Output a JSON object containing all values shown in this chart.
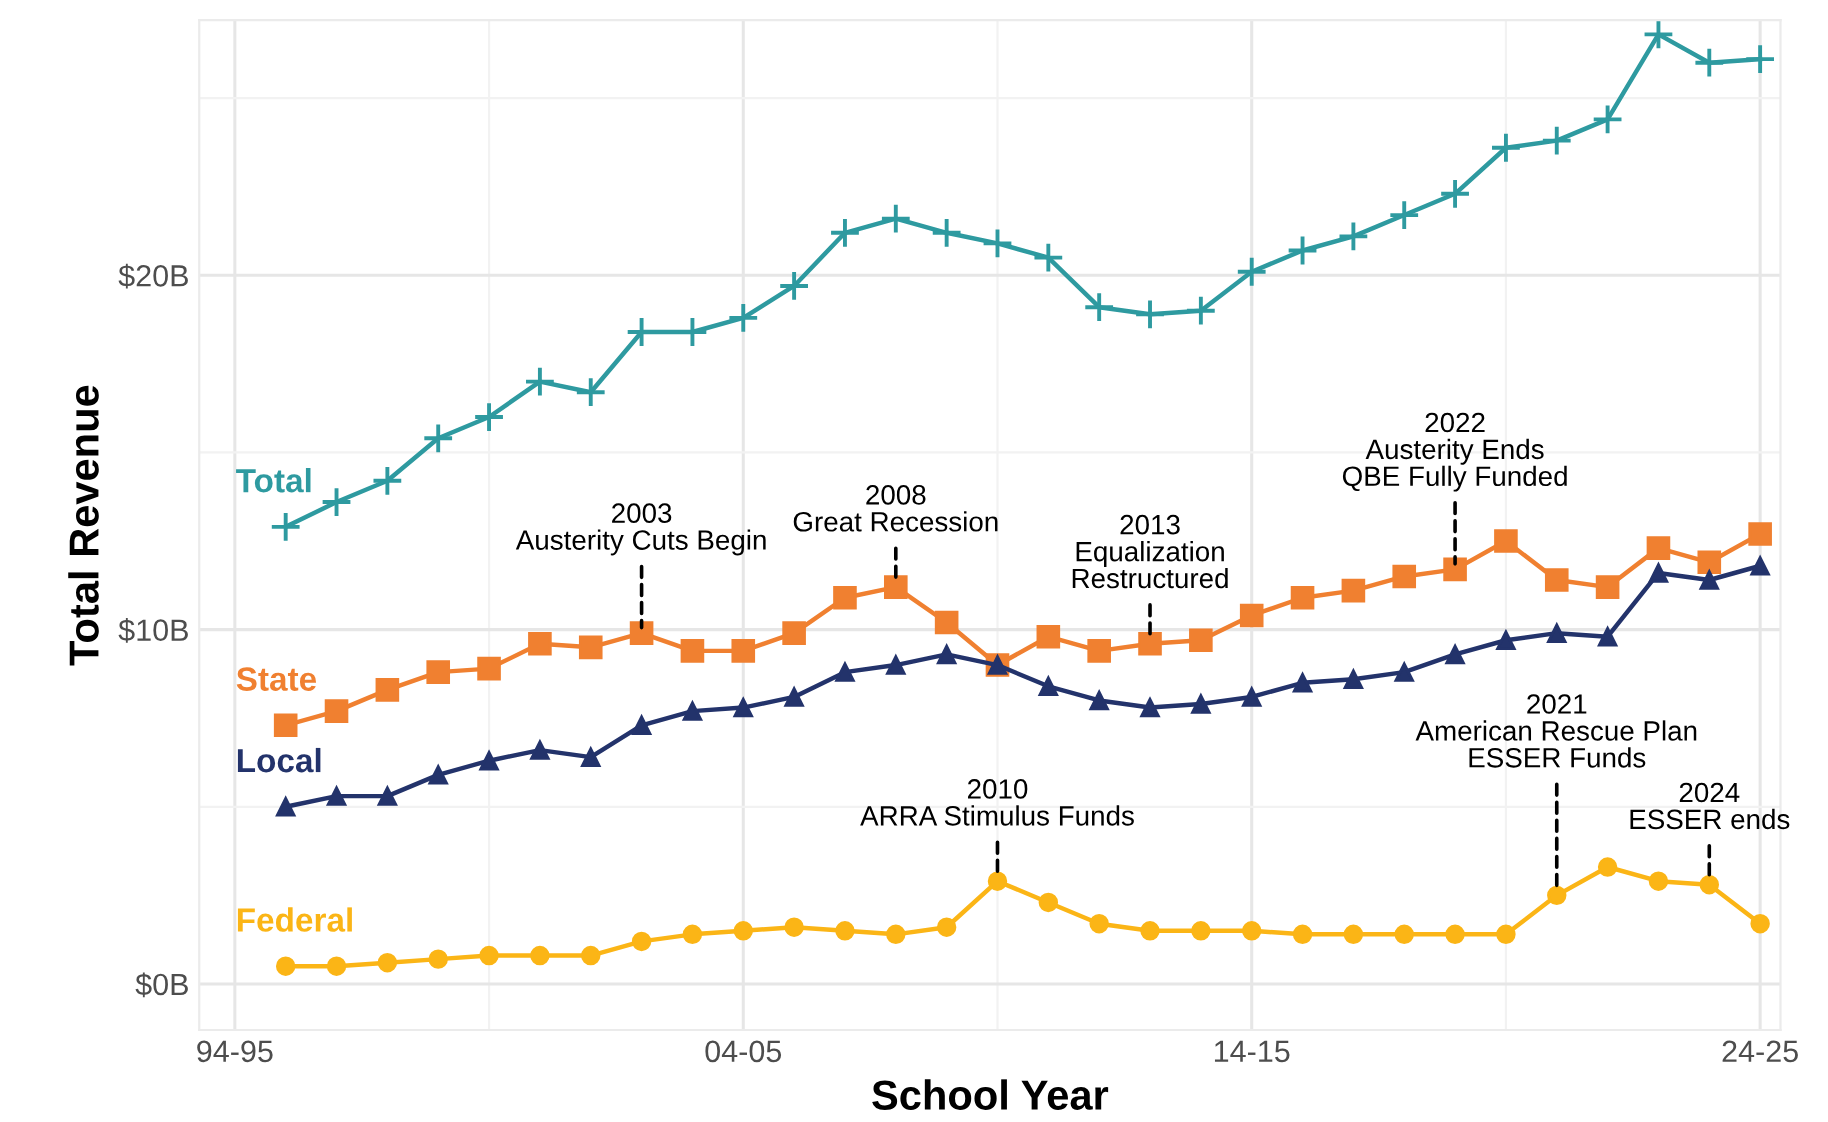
{
  "chart_data": {
    "type": "line",
    "xlabel": "School Year",
    "ylabel": "Total Revenue",
    "categories": [
      "94-95",
      null,
      null,
      null,
      null,
      null,
      null,
      null,
      null,
      null,
      "04-05",
      null,
      null,
      null,
      null,
      null,
      null,
      null,
      null,
      null,
      "14-15",
      null,
      null,
      null,
      null,
      null,
      null,
      null,
      null,
      null,
      "24-25"
    ],
    "series": [
      {
        "name": "Total",
        "color": "#2e9aa0",
        "marker": "cross",
        "values": [
          null,
          12.9,
          13.6,
          14.2,
          15.4,
          16.0,
          17.0,
          16.7,
          18.4,
          18.4,
          18.8,
          19.7,
          21.2,
          21.6,
          21.2,
          20.9,
          20.5,
          19.1,
          18.9,
          19.0,
          20.1,
          20.7,
          21.1,
          21.7,
          22.3,
          23.6,
          23.8,
          24.4,
          26.8,
          26.0,
          26.1
        ]
      },
      {
        "name": "State",
        "color": "#f08030",
        "marker": "square",
        "values": [
          null,
          7.3,
          7.7,
          8.3,
          8.8,
          8.9,
          9.6,
          9.5,
          9.9,
          9.4,
          9.4,
          9.9,
          10.9,
          11.2,
          10.2,
          9.0,
          9.8,
          9.4,
          9.6,
          9.7,
          10.4,
          10.9,
          11.1,
          11.5,
          11.7,
          12.5,
          11.4,
          11.2,
          12.3,
          11.9,
          12.7
        ]
      },
      {
        "name": "Local",
        "color": "#23336b",
        "marker": "triangle",
        "values": [
          null,
          5.0,
          5.3,
          5.3,
          5.9,
          6.3,
          6.6,
          6.4,
          7.3,
          7.7,
          7.8,
          8.1,
          8.8,
          9.0,
          9.3,
          9.0,
          8.4,
          8.0,
          7.8,
          7.9,
          8.1,
          8.5,
          8.6,
          8.8,
          9.3,
          9.7,
          9.9,
          9.8,
          11.6,
          11.4,
          11.8
        ]
      },
      {
        "name": "Federal",
        "color": "#fbb516",
        "marker": "circle",
        "values": [
          null,
          0.5,
          0.5,
          0.6,
          0.7,
          0.8,
          0.8,
          0.8,
          1.2,
          1.4,
          1.5,
          1.6,
          1.5,
          1.4,
          1.6,
          2.9,
          2.3,
          1.7,
          1.5,
          1.5,
          1.5,
          1.4,
          1.4,
          1.4,
          1.4,
          1.4,
          2.5,
          3.3,
          2.9,
          2.8,
          1.7
        ]
      }
    ],
    "ylim": [
      -1.3,
      27.2
    ],
    "yticks": [
      {
        "value": 0,
        "label": "$0B"
      },
      {
        "value": 10,
        "label": "$10B"
      },
      {
        "value": 20,
        "label": "$20B"
      }
    ],
    "grid": true,
    "legend": false,
    "line_style": "solid",
    "annotations": [
      {
        "text": "2003\nAusterity Cuts Begin",
        "y": 9.9
      },
      {
        "text": "2008\nGreat Recession",
        "y": 11.2
      },
      {
        "text": "2013\nEqualization\nRestructured",
        "y": 9.6
      },
      {
        "text": "2022\nAusterity Ends\nQBE Fully Funded",
        "y": 11.7
      },
      {
        "text": "2010\nARRA Stimulus Funds",
        "y": 2.9
      },
      {
        "text": "2021\nAmerican Rescue Plan\nESSER Funds",
        "y": 2.5
      },
      {
        "text": "2024\nESSER ends",
        "y": 2.8
      }
    ]
  }
}
